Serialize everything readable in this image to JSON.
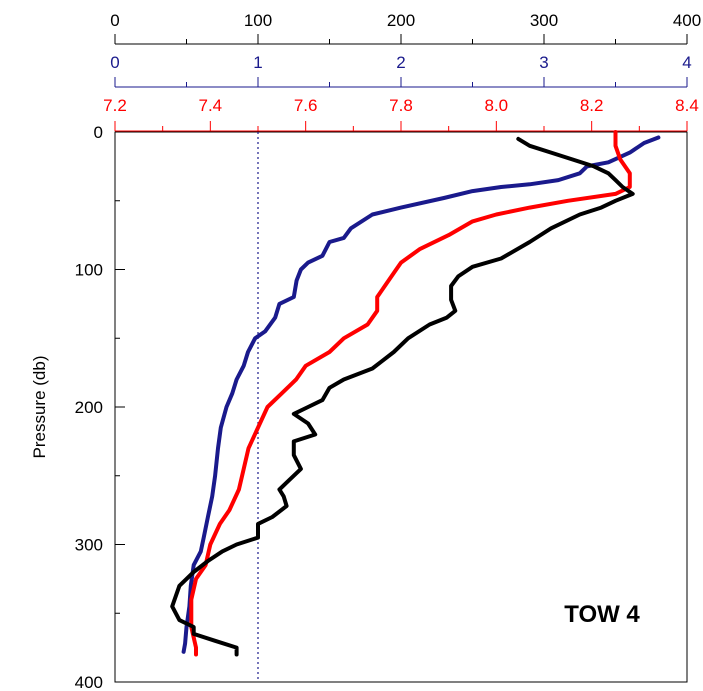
{
  "chart_data": {
    "type": "line",
    "title": "",
    "annotation": "TOW 4",
    "ylabel": "Pressure (db)",
    "y_inverted": true,
    "ylim": [
      0,
      400
    ],
    "yticks": [
      0,
      100,
      200,
      300,
      400
    ],
    "y_tick_labels": [
      "0",
      "100",
      "200",
      "300",
      "400"
    ],
    "grid": false,
    "top_axes": [
      {
        "id": "black",
        "color": "#000000",
        "range": [
          0,
          400
        ],
        "ticks": [
          0,
          100,
          200,
          300,
          400
        ],
        "tick_labels": [
          "0",
          "100",
          "200",
          "300",
          "400"
        ],
        "label": ""
      },
      {
        "id": "blue",
        "color": "#1a1a8c",
        "range": [
          0,
          4
        ],
        "ticks": [
          0,
          1,
          2,
          3,
          4
        ],
        "tick_labels": [
          "0",
          "1",
          "2",
          "3",
          "4"
        ],
        "label": ""
      },
      {
        "id": "red",
        "color": "#ff0000",
        "range": [
          7.2,
          8.4
        ],
        "ticks": [
          7.2,
          7.4,
          7.6,
          7.8,
          8.0,
          8.2,
          8.4
        ],
        "tick_labels": [
          "7.2",
          "7.4",
          "7.6",
          "7.8",
          "8.0",
          "8.2",
          "8.4"
        ],
        "label": ""
      }
    ],
    "reference_line": {
      "axis": "blue",
      "x": 1.0,
      "style": "dotted"
    },
    "series": [
      {
        "axis": "blue",
        "color": "#1a1a8c",
        "points": [
          [
            3.8,
            4
          ],
          [
            3.7,
            8
          ],
          [
            3.6,
            15
          ],
          [
            3.45,
            22
          ],
          [
            3.3,
            25
          ],
          [
            3.25,
            30
          ],
          [
            3.1,
            35
          ],
          [
            2.9,
            38
          ],
          [
            2.7,
            40
          ],
          [
            2.5,
            43
          ],
          [
            2.3,
            48
          ],
          [
            2.0,
            55
          ],
          [
            1.8,
            60
          ],
          [
            1.65,
            70
          ],
          [
            1.6,
            77
          ],
          [
            1.5,
            80
          ],
          [
            1.45,
            90
          ],
          [
            1.35,
            95
          ],
          [
            1.3,
            100
          ],
          [
            1.27,
            108
          ],
          [
            1.25,
            120
          ],
          [
            1.15,
            125
          ],
          [
            1.12,
            135
          ],
          [
            1.05,
            145
          ],
          [
            0.98,
            150
          ],
          [
            0.93,
            160
          ],
          [
            0.9,
            170
          ],
          [
            0.85,
            180
          ],
          [
            0.82,
            190
          ],
          [
            0.78,
            200
          ],
          [
            0.74,
            215
          ],
          [
            0.72,
            230
          ],
          [
            0.7,
            250
          ],
          [
            0.68,
            265
          ],
          [
            0.65,
            280
          ],
          [
            0.62,
            295
          ],
          [
            0.6,
            305
          ],
          [
            0.55,
            315
          ],
          [
            0.53,
            330
          ],
          [
            0.52,
            345
          ],
          [
            0.5,
            360
          ],
          [
            0.49,
            372
          ],
          [
            0.48,
            378
          ]
        ]
      },
      {
        "axis": "red",
        "color": "#ff0000",
        "points": [
          [
            8.25,
            0
          ],
          [
            8.25,
            10
          ],
          [
            8.26,
            20
          ],
          [
            8.28,
            30
          ],
          [
            8.28,
            40
          ],
          [
            8.25,
            45
          ],
          [
            8.15,
            50
          ],
          [
            8.07,
            55
          ],
          [
            8.0,
            60
          ],
          [
            7.95,
            65
          ],
          [
            7.9,
            75
          ],
          [
            7.84,
            85
          ],
          [
            7.8,
            95
          ],
          [
            7.79,
            100
          ],
          [
            7.77,
            110
          ],
          [
            7.75,
            120
          ],
          [
            7.75,
            130
          ],
          [
            7.73,
            140
          ],
          [
            7.68,
            150
          ],
          [
            7.65,
            160
          ],
          [
            7.6,
            170
          ],
          [
            7.58,
            180
          ],
          [
            7.55,
            190
          ],
          [
            7.52,
            200
          ],
          [
            7.5,
            215
          ],
          [
            7.48,
            230
          ],
          [
            7.47,
            245
          ],
          [
            7.46,
            260
          ],
          [
            7.44,
            275
          ],
          [
            7.42,
            285
          ],
          [
            7.4,
            300
          ],
          [
            7.39,
            315
          ],
          [
            7.37,
            325
          ],
          [
            7.36,
            340
          ],
          [
            7.36,
            360
          ],
          [
            7.37,
            375
          ],
          [
            7.37,
            380
          ]
        ]
      },
      {
        "axis": "black",
        "color": "#000000",
        "points": [
          [
            282,
            5
          ],
          [
            290,
            10
          ],
          [
            305,
            15
          ],
          [
            320,
            20
          ],
          [
            335,
            25
          ],
          [
            345,
            30
          ],
          [
            350,
            35
          ],
          [
            355,
            40
          ],
          [
            362,
            45
          ],
          [
            350,
            50
          ],
          [
            340,
            55
          ],
          [
            325,
            60
          ],
          [
            305,
            70
          ],
          [
            290,
            80
          ],
          [
            270,
            92
          ],
          [
            250,
            98
          ],
          [
            240,
            105
          ],
          [
            235,
            112
          ],
          [
            235,
            122
          ],
          [
            238,
            130
          ],
          [
            232,
            135
          ],
          [
            220,
            140
          ],
          [
            205,
            150
          ],
          [
            195,
            160
          ],
          [
            180,
            172
          ],
          [
            160,
            180
          ],
          [
            150,
            186
          ],
          [
            145,
            195
          ],
          [
            135,
            200
          ],
          [
            125,
            205
          ],
          [
            135,
            212
          ],
          [
            140,
            220
          ],
          [
            125,
            225
          ],
          [
            125,
            235
          ],
          [
            130,
            245
          ],
          [
            120,
            255
          ],
          [
            115,
            260
          ],
          [
            118,
            265
          ],
          [
            120,
            272
          ],
          [
            110,
            280
          ],
          [
            100,
            285
          ],
          [
            100,
            295
          ],
          [
            85,
            300
          ],
          [
            75,
            305
          ],
          [
            65,
            312
          ],
          [
            55,
            320
          ],
          [
            45,
            330
          ],
          [
            40,
            345
          ],
          [
            45,
            355
          ],
          [
            55,
            360
          ],
          [
            55,
            365
          ],
          [
            70,
            370
          ],
          [
            85,
            375
          ],
          [
            85,
            380
          ]
        ]
      }
    ]
  }
}
